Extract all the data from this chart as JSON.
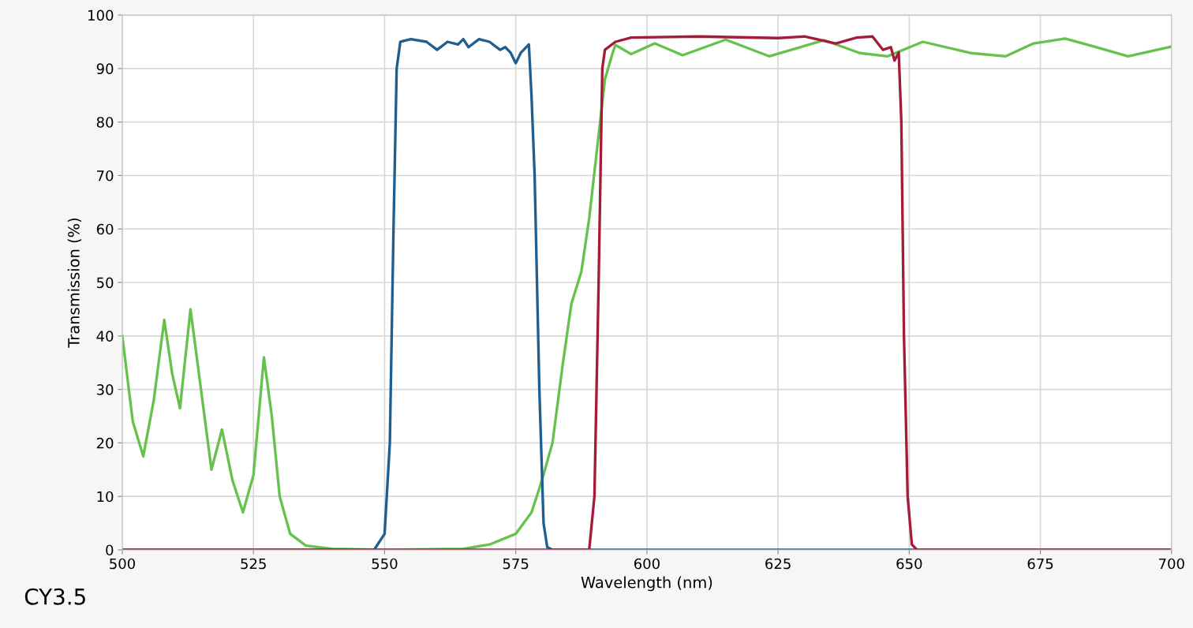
{
  "chart_data": {
    "type": "line",
    "xlabel": "Wavelength (nm)",
    "ylabel": "Transmission (%)",
    "xlim": [
      500,
      700
    ],
    "xticks": [
      500,
      525,
      550,
      575,
      600,
      625,
      650,
      675,
      700
    ],
    "ylim": [
      0,
      100
    ],
    "yticks": [
      0,
      10,
      20,
      30,
      40,
      50,
      60,
      70,
      80,
      90,
      100
    ],
    "grid": true,
    "legend": false,
    "marker": "none",
    "line_style": "solid",
    "annotations": [
      "CY3.5"
    ],
    "series": [
      {
        "color": "#66c24c",
        "x": [
          500,
          502,
          504,
          506,
          508,
          509.5,
          511,
          513,
          515,
          517,
          519,
          521,
          523,
          525,
          527,
          528.5,
          530,
          532,
          535,
          540,
          550,
          565,
          570,
          575,
          578,
          580,
          582,
          584,
          585.6,
          587.5,
          589,
          590.5,
          592,
          593.5,
          594,
          597,
          601.5,
          606.8,
          615,
          623.3,
          633.8,
          640.6,
          645.9,
          652.6,
          661.7,
          668.4,
          673.7,
          679.7,
          685.7,
          691.7,
          700
        ],
        "values": [
          40,
          24,
          17.5,
          28,
          43,
          33,
          26.5,
          45,
          30,
          15,
          22.5,
          13,
          7,
          14,
          36,
          25,
          10,
          3,
          0.8,
          0.2,
          0,
          0.2,
          1,
          3,
          7,
          13,
          20,
          35,
          46,
          52,
          62,
          75,
          88,
          93,
          94.4,
          92.7,
          94.7,
          92.5,
          95.4,
          92.3,
          95.3,
          92.9,
          92.3,
          95,
          92.9,
          92.3,
          94.7,
          95.6,
          94,
          92.3,
          94.1
        ]
      },
      {
        "color": "#1f5f8f",
        "x": [
          500,
          548,
          550,
          551,
          551.7,
          552.3,
          553,
          555,
          558,
          560,
          562,
          564,
          565,
          566,
          568,
          570,
          572,
          573,
          574,
          575,
          576,
          577.5,
          578,
          578.6,
          579.5,
          580.3,
          581,
          582,
          700
        ],
        "values": [
          0,
          0,
          3,
          20,
          60,
          90,
          95,
          95.5,
          95,
          93.5,
          95,
          94.5,
          95.5,
          94,
          95.5,
          95,
          93.5,
          94,
          93,
          91,
          93,
          94.5,
          85,
          70,
          30,
          5,
          0.5,
          0,
          0
        ]
      },
      {
        "color": "#a51c3a",
        "x": [
          500,
          589,
          590,
          590.8,
          591.5,
          592,
          594,
          597,
          610,
          625,
          630,
          636,
          640,
          643,
          645,
          646.5,
          647.2,
          648,
          648.5,
          649,
          649.7,
          650.5,
          651.5,
          700
        ],
        "values": [
          0,
          0,
          10,
          50,
          90,
          93.5,
          95,
          95.8,
          96,
          95.7,
          96,
          94.7,
          95.8,
          96,
          93.5,
          94,
          91.5,
          93,
          80,
          40,
          10,
          1,
          0,
          0
        ]
      }
    ]
  }
}
